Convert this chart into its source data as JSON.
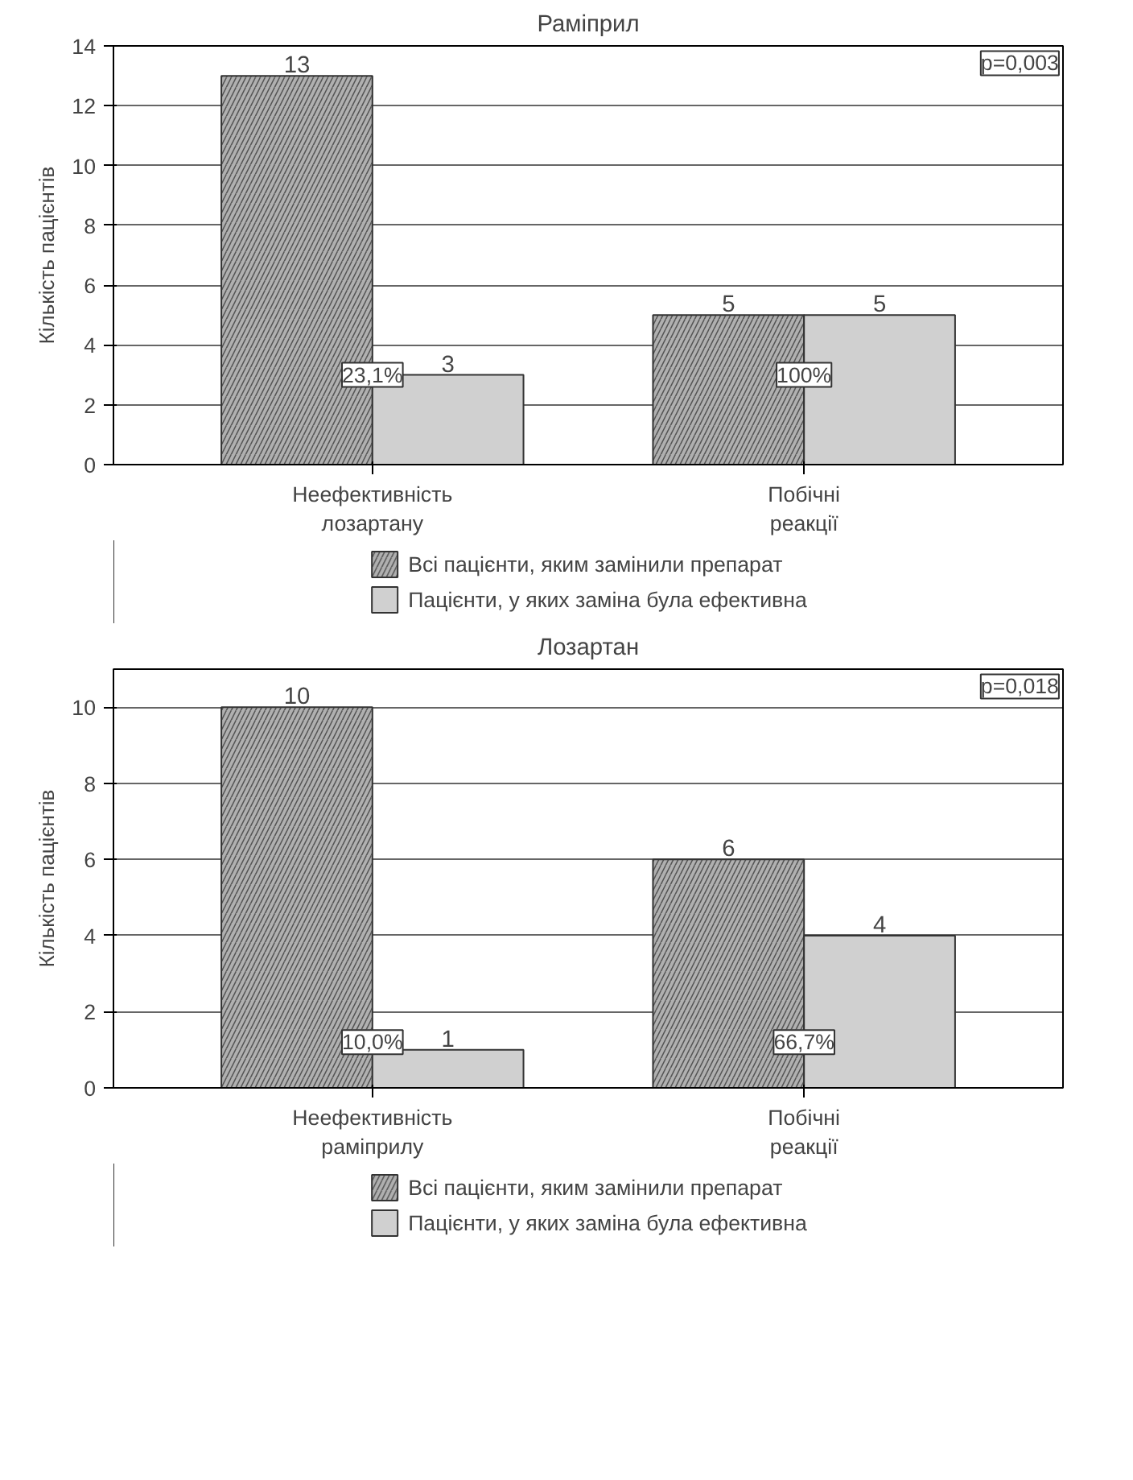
{
  "chart_data": [
    {
      "type": "bar",
      "title": "Раміприл",
      "ylabel": "Кількість пацієнтів",
      "categories": [
        "Неефективність лозартану",
        "Побічні реакції"
      ],
      "series": [
        {
          "name": "Всі пацієнти, яким замінили препарат",
          "color": "#b0b0b0",
          "values": [
            13,
            5
          ]
        },
        {
          "name": "Пацієнти, у яких заміна була ефективна",
          "color": "#d0d0d0",
          "values": [
            3,
            5
          ]
        }
      ],
      "ylim": [
        0,
        14
      ],
      "yticks": [
        0,
        2,
        4,
        6,
        8,
        10,
        12,
        14
      ],
      "grid": "y",
      "legend": "bottom",
      "data_labels": true,
      "annotations": [
        {
          "text": "23,1%",
          "x": "Неефективність лозартану",
          "y": 3
        },
        {
          "text": "100%",
          "x": "Побічні реакції",
          "y": 3
        },
        "p=0,003"
      ]
    },
    {
      "type": "bar",
      "title": "Лозартан",
      "ylabel": "Кількість пацієнтів",
      "categories": [
        "Неефективність раміприлу",
        "Побічні реакції"
      ],
      "series": [
        {
          "name": "Всі пацієнти, яким замінили препарат",
          "color": "#b0b0b0",
          "values": [
            10,
            6
          ]
        },
        {
          "name": "Пацієнти, у яких заміна була ефективна",
          "color": "#d0d0d0",
          "values": [
            1,
            4
          ]
        }
      ],
      "ylim": [
        0,
        11
      ],
      "yticks": [
        0,
        2,
        4,
        6,
        8,
        10
      ],
      "grid": "y",
      "legend": "bottom",
      "data_labels": true,
      "annotations": [
        {
          "text": "10,0%",
          "x": "Неефективність раміприлу",
          "y": 1.2
        },
        {
          "text": "66,7%",
          "x": "Побічні реакції",
          "y": 1.2
        },
        "p=0,018"
      ]
    }
  ]
}
